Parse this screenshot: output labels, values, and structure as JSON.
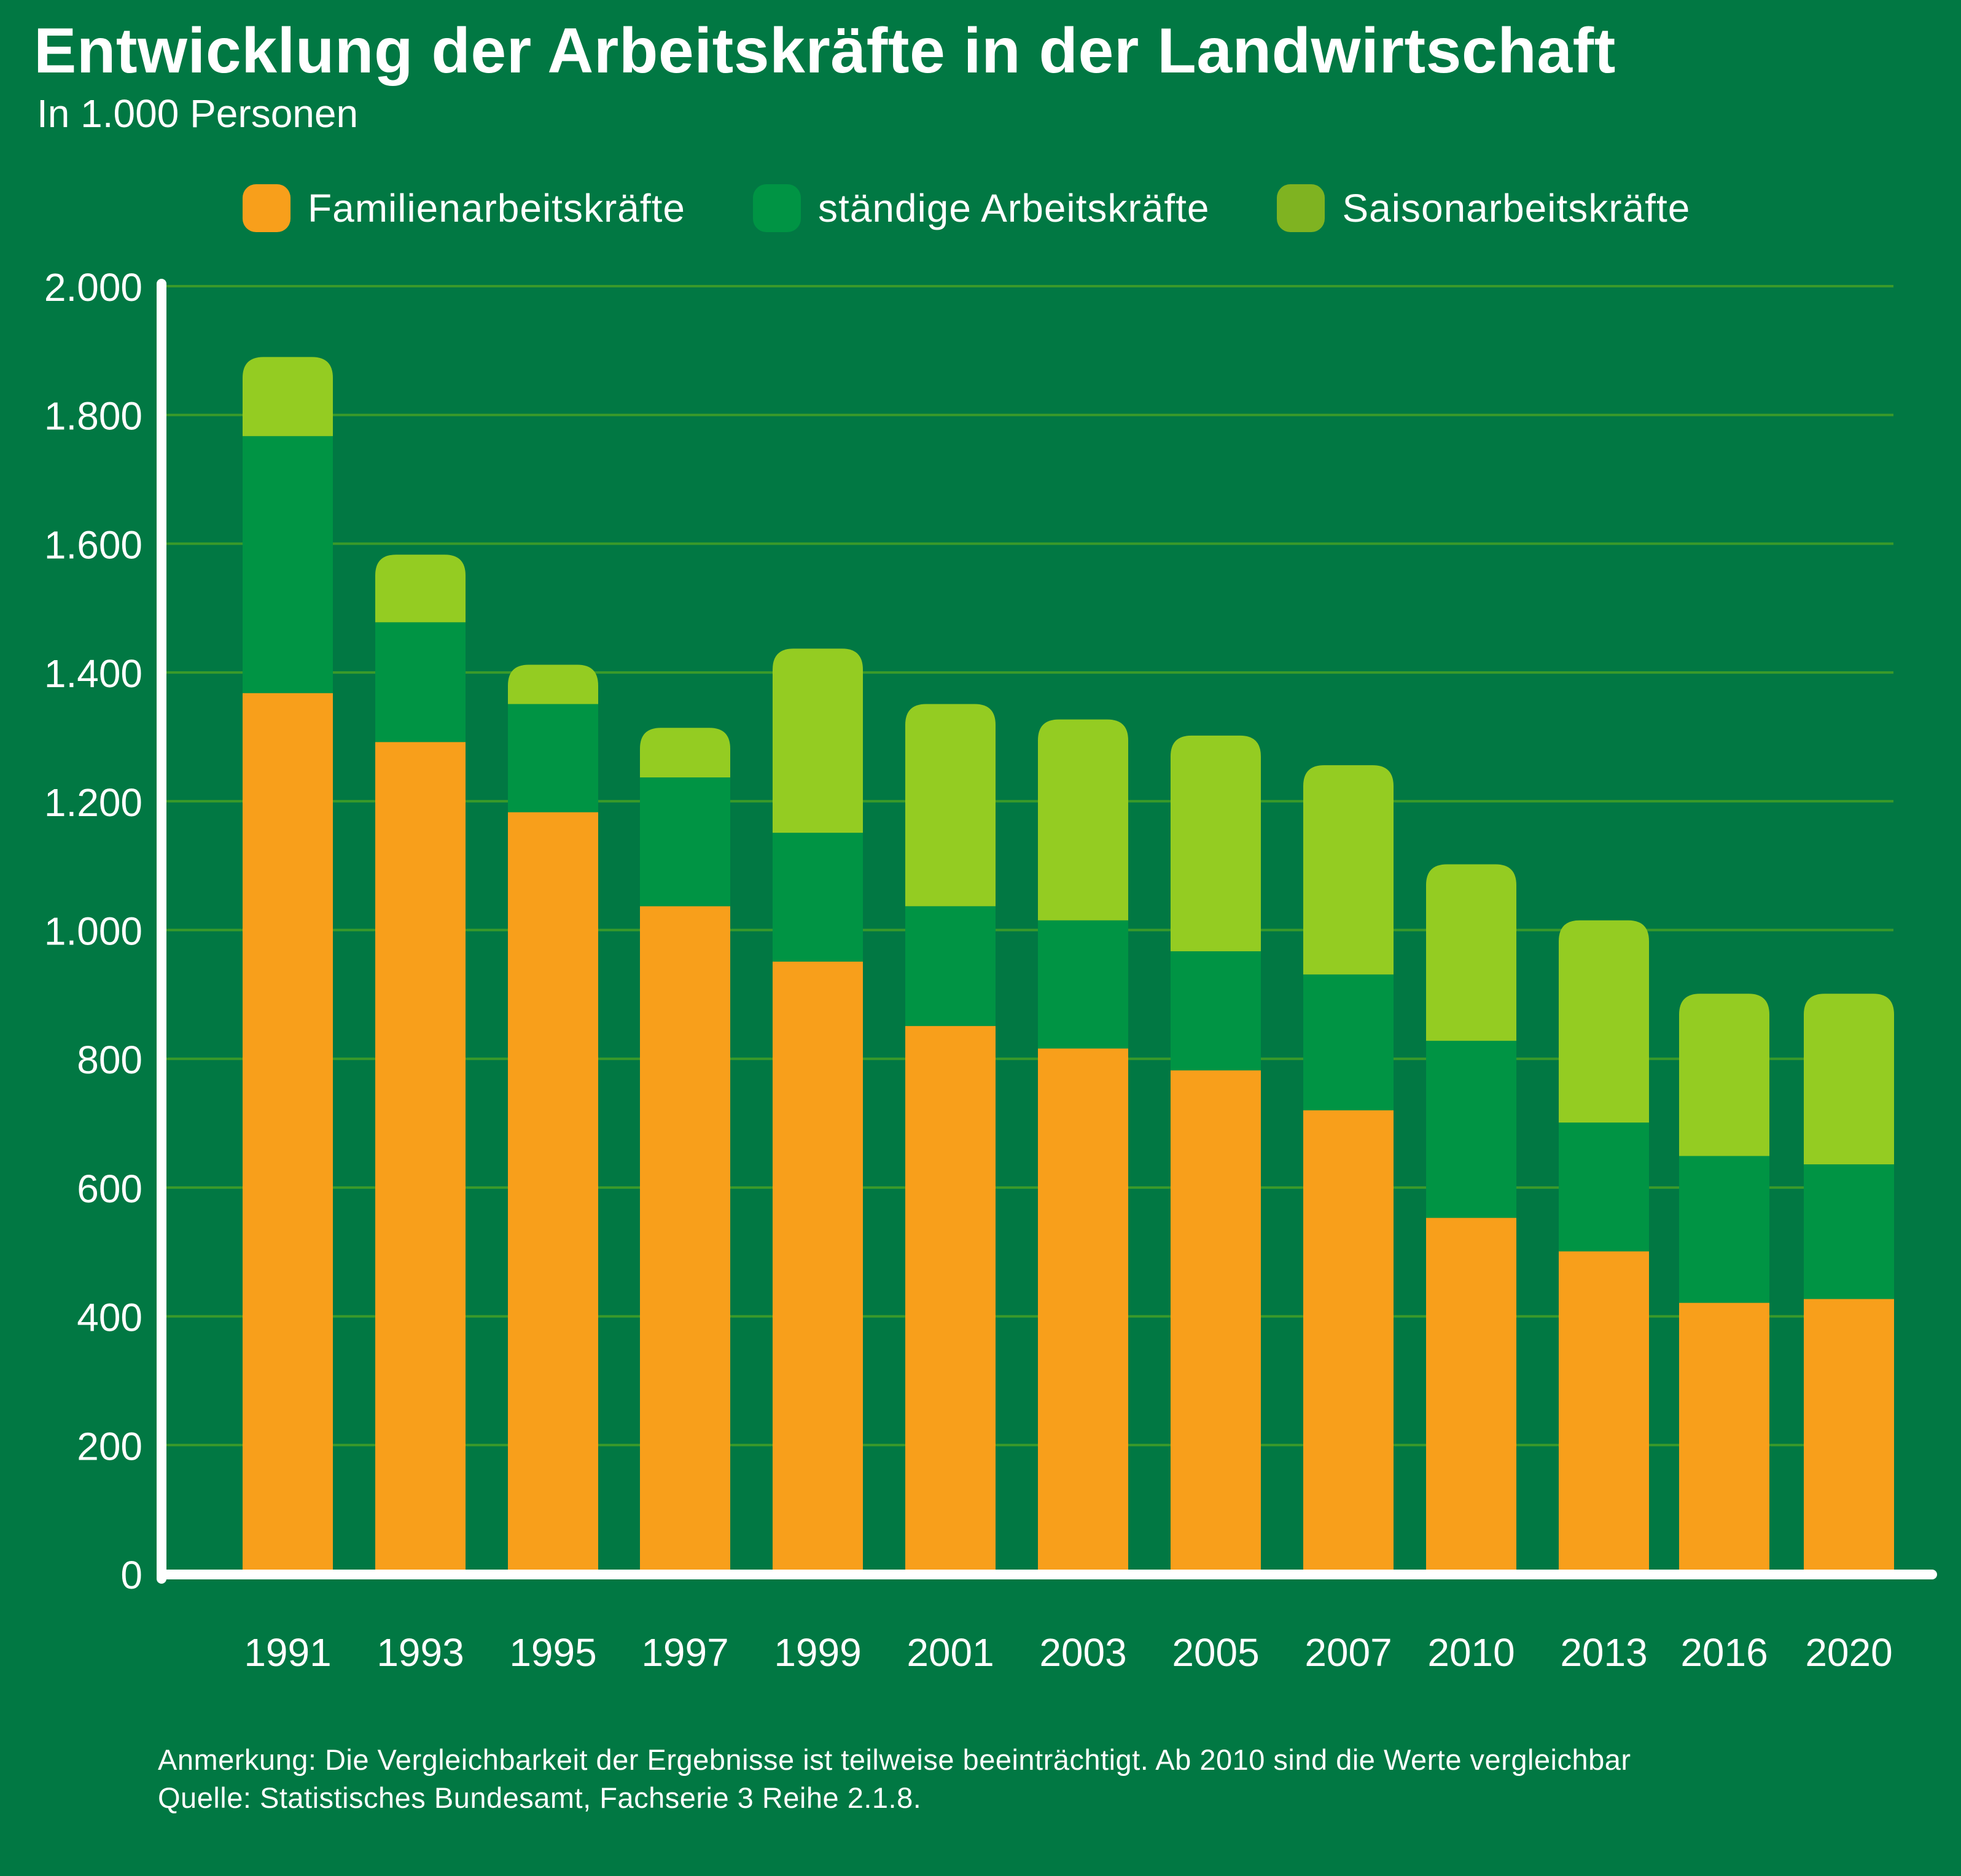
{
  "header": {
    "title": "Entwicklung der Arbeitskräfte in der Landwirtschaft",
    "subtitle": "In 1.000 Personen"
  },
  "legend": [
    {
      "label": "Familienarbeitskräfte",
      "color": "#f89f1b"
    },
    {
      "label": "ständige Arbeitskräfte",
      "color": "#009444"
    },
    {
      "label": "Saisonarbeitskräfte",
      "color": "#7fb321"
    }
  ],
  "footer": {
    "note": "Anmerkung: Die Vergleichbarkeit der Ergebnisse ist teilweise beeinträchtigt. Ab 2010 sind die Werte vergleichbar",
    "source": "Quelle: Statistisches Bundesamt, Fachserie 3 Reihe 2.1.8."
  },
  "colors": {
    "background": "#017843",
    "gridline": "#3a9a2a",
    "axis": "#ffffff",
    "familie": "#f89f1b",
    "staendig": "#009444",
    "saison": "#94cc22"
  },
  "chart_data": {
    "type": "bar",
    "stacked": true,
    "title": "Entwicklung der Arbeitskräfte in der Landwirtschaft",
    "subtitle": "In 1.000 Personen",
    "xlabel": "",
    "ylabel": "",
    "ylim": [
      0,
      2000
    ],
    "yticks": [
      0,
      200,
      400,
      600,
      800,
      1000,
      1200,
      1400,
      1600,
      1800,
      2000
    ],
    "ytick_labels": [
      "0",
      "200",
      "400",
      "600",
      "800",
      "1.000",
      "1.200",
      "1.400",
      "1.600",
      "1.800",
      "2.000"
    ],
    "grid": true,
    "legend_position": "top",
    "categories": [
      "1991",
      "1993",
      "1995",
      "1997",
      "1999",
      "2001",
      "2003",
      "2005",
      "2007",
      "2010",
      "2013",
      "2016",
      "2020"
    ],
    "series": [
      {
        "name": "Familienarbeitskräfte",
        "values": [
          1368,
          1292,
          1183,
          1037,
          951,
          851,
          816,
          782,
          720,
          553,
          501,
          421,
          427
        ]
      },
      {
        "name": "ständige Arbeitskräfte",
        "values": [
          399,
          186,
          168,
          200,
          200,
          186,
          199,
          185,
          211,
          275,
          200,
          228,
          209
        ]
      },
      {
        "name": "Saisonarbeitskräfte",
        "values": [
          123,
          105,
          61,
          77,
          286,
          314,
          312,
          335,
          325,
          274,
          314,
          252,
          265
        ]
      }
    ]
  }
}
